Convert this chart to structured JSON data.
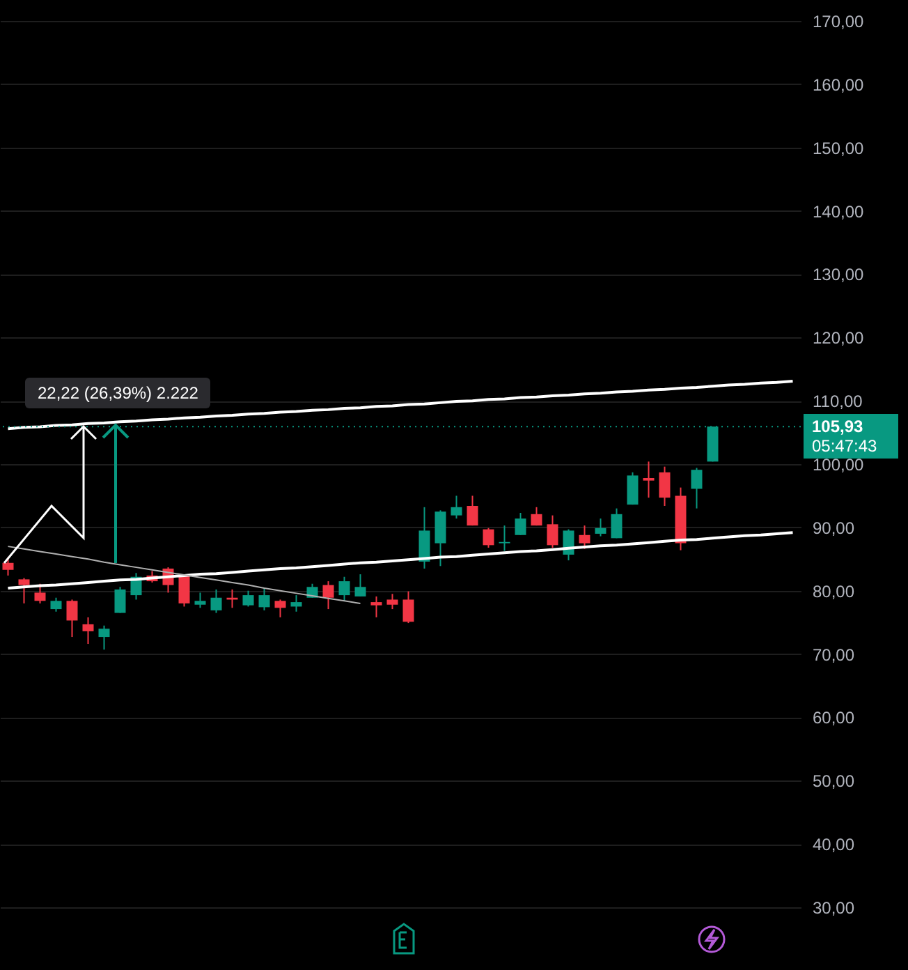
{
  "chart_data": {
    "type": "candlestick",
    "categories": [
      null,
      null,
      null,
      null,
      null,
      null,
      null,
      null,
      null,
      null,
      null,
      null,
      null,
      null,
      null,
      null,
      null,
      null,
      null,
      null,
      null,
      null,
      null,
      null,
      null,
      null,
      null,
      null,
      null,
      null,
      null,
      null,
      null,
      null,
      null,
      null,
      null,
      null,
      null,
      null,
      null,
      null,
      null,
      null,
      null,
      null,
      null,
      null,
      null,
      null
    ],
    "ohlc": [
      [
        84.4,
        85.3,
        82.4,
        83.3
      ],
      [
        81.8,
        82,
        78,
        80.9
      ],
      [
        79.7,
        81.1,
        78,
        78.4
      ],
      [
        77.1,
        78.9,
        76.7,
        78.4
      ],
      [
        78.4,
        78.6,
        72.7,
        75.3
      ],
      [
        74.7,
        75.8,
        71.6,
        73.6
      ],
      [
        72.7,
        74.5,
        70.7,
        74
      ],
      [
        76.5,
        80.6,
        76.5,
        80.2
      ],
      [
        79.3,
        82.8,
        78.6,
        82.2
      ],
      [
        82.4,
        83.1,
        81.3,
        81.5
      ],
      [
        83.5,
        83.7,
        79.7,
        80.9
      ],
      [
        82.4,
        82.4,
        77.5,
        78
      ],
      [
        77.8,
        79.7,
        77.3,
        78.4
      ],
      [
        76.9,
        80.2,
        76.5,
        78.9
      ],
      [
        78.9,
        80.2,
        77.3,
        78.6
      ],
      [
        77.7,
        80,
        77.5,
        79.3
      ],
      [
        77.4,
        80.4,
        76.9,
        79.3
      ],
      [
        78.4,
        78.6,
        75.8,
        77.3
      ],
      [
        77.5,
        79.3,
        76.7,
        78.2
      ],
      [
        78.9,
        81.1,
        78.9,
        80.6
      ],
      [
        80.9,
        81.5,
        77.1,
        78.9
      ],
      [
        79.3,
        82.2,
        78.4,
        81.5
      ],
      [
        79.1,
        82.6,
        79.1,
        80.6
      ],
      [
        78.2,
        79.1,
        75.8,
        77.7
      ],
      [
        78.6,
        79.5,
        77.1,
        77.8
      ],
      [
        78.6,
        79.9,
        74.9,
        75.1
      ],
      [
        84.6,
        93.2,
        83.5,
        89.5
      ],
      [
        87.5,
        92.7,
        83.9,
        92.5
      ],
      [
        91.9,
        95,
        91.4,
        93.2
      ],
      [
        93.4,
        95,
        90.3,
        90.3
      ],
      [
        89.7,
        89.9,
        86.8,
        87.2
      ],
      [
        87.5,
        90.3,
        86.3,
        87.7
      ],
      [
        88.8,
        92.3,
        88.8,
        91.4
      ],
      [
        92.1,
        93.2,
        90.3,
        90.3
      ],
      [
        90.5,
        91.9,
        86.8,
        87.2
      ],
      [
        85.7,
        89.7,
        84.8,
        89.5
      ],
      [
        88.8,
        90.3,
        86.6,
        87.5
      ],
      [
        89,
        91.4,
        88.6,
        89.9
      ],
      [
        88.3,
        93,
        88.3,
        92.1
      ],
      [
        93.6,
        98.7,
        93.6,
        98.2
      ],
      [
        97.8,
        100.4,
        94.7,
        97.4
      ],
      [
        98.7,
        99.6,
        93.4,
        94.7
      ],
      [
        95,
        96.3,
        86.4,
        87.5
      ],
      [
        96.1,
        99.4,
        93,
        99.1
      ],
      [
        100.4,
        105.93,
        100.4,
        105.93
      ],
      null,
      null,
      null,
      null,
      null
    ],
    "colors": [
      "#f23645",
      "#f23645",
      "#f23645",
      "#089981",
      "#f23645",
      "#f23645",
      "#089981",
      "#089981",
      "#089981",
      "#f23645",
      "#f23645",
      "#f23645",
      "#089981",
      "#089981",
      "#f23645",
      "#089981",
      "#089981",
      "#f23645",
      "#089981",
      "#089981",
      "#f23645",
      "#089981",
      "#089981",
      "#f23645",
      "#f23645",
      "#f23645",
      "#089981",
      "#089981",
      "#089981",
      "#f23645",
      "#f23645",
      "#089981",
      "#089981",
      "#f23645",
      "#f23645",
      "#089981",
      "#f23645",
      "#089981",
      "#089981",
      "#089981",
      "#f23645",
      "#f23645",
      "#f23645",
      "#089981",
      "#089981",
      null,
      null,
      null,
      null,
      null
    ],
    "series": [
      {
        "type": "line",
        "color": "#ffffff",
        "values": [
          105.6,
          105.8,
          105.9,
          106.1,
          106.2,
          106.4,
          106.5,
          106.7,
          106.8,
          107.0,
          107.1,
          107.3,
          107.4,
          107.6,
          107.7,
          107.9,
          108.0,
          108.2,
          108.3,
          108.5,
          108.6,
          108.8,
          108.9,
          109.1,
          109.2,
          109.4,
          109.5,
          109.7,
          109.9,
          110.0,
          110.2,
          110.3,
          110.5,
          110.6,
          110.8,
          110.9,
          111.1,
          111.2,
          111.4,
          111.5,
          111.7,
          111.8,
          112.0,
          112.1,
          112.3,
          112.5,
          112.6,
          112.8,
          112.9,
          113.1
        ]
      },
      {
        "type": "line",
        "color": "#ffffff",
        "values": [
          80.4,
          80.6,
          80.8,
          80.9,
          81.1,
          81.3,
          81.5,
          81.7,
          81.8,
          82.0,
          82.2,
          82.4,
          82.6,
          82.7,
          82.9,
          83.1,
          83.3,
          83.5,
          83.6,
          83.8,
          84.0,
          84.2,
          84.4,
          84.5,
          84.7,
          84.9,
          85.1,
          85.3,
          85.4,
          85.6,
          85.8,
          86.0,
          86.2,
          86.3,
          86.5,
          86.7,
          86.9,
          87.1,
          87.2,
          87.4,
          87.6,
          87.8,
          88.0,
          88.1,
          88.3,
          88.5,
          88.7,
          88.8,
          89.0,
          89.2
        ]
      },
      {
        "type": "line",
        "color": "#b0b0b0",
        "values": [
          87.0,
          86.6,
          86.2,
          85.8,
          85.4,
          85.0,
          84.5,
          84.1,
          83.7,
          83.3,
          82.9,
          82.5,
          82.1,
          81.7,
          81.3,
          80.9,
          80.4,
          80.0,
          79.6,
          79.2,
          78.8,
          78.4,
          78.0,
          null,
          null,
          null,
          null,
          null,
          null,
          null,
          null,
          null,
          null,
          null,
          null,
          null,
          null,
          null,
          null,
          null,
          null,
          null,
          null,
          null,
          null,
          null,
          null,
          null,
          null,
          null
        ]
      }
    ],
    "ylim": [
      20.1,
      173.3
    ],
    "yticks": [
      {
        "value": 30,
        "label": "30,00"
      },
      {
        "value": 40,
        "label": "40,00"
      },
      {
        "value": 50,
        "label": "50,00"
      },
      {
        "value": 60,
        "label": "60,00"
      },
      {
        "value": 70,
        "label": "70,00"
      },
      {
        "value": 80,
        "label": "80,00"
      },
      {
        "value": 90,
        "label": "90,00"
      },
      {
        "value": 100,
        "label": "100,00"
      },
      {
        "value": 110,
        "label": "110,00"
      },
      {
        "value": 120,
        "label": "120,00"
      },
      {
        "value": 130,
        "label": "130,00"
      },
      {
        "value": 140,
        "label": "140,00"
      },
      {
        "value": 150,
        "label": "150,00"
      },
      {
        "value": 160,
        "label": "160,00"
      },
      {
        "value": 170,
        "label": "170,00"
      }
    ],
    "grid": "y",
    "tick_labels": "y",
    "ref_lines": [
      {
        "axis": "y",
        "value": 105.93,
        "label": "105,93",
        "color": "#089981",
        "line_style": "dotted"
      }
    ],
    "annotations": [
      "22,22 (26,39%) 2.222",
      "05:47:43"
    ]
  }
}
